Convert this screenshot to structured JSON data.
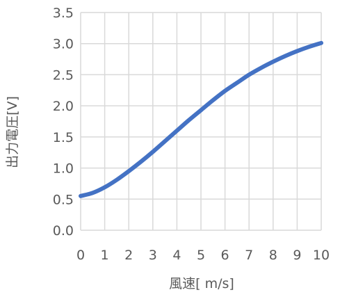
{
  "chart_data": {
    "type": "line",
    "title": "",
    "xlabel": "風速[ m/s]",
    "ylabel": "出力電圧[V]",
    "xlim": [
      0,
      10
    ],
    "ylim": [
      0,
      3.5
    ],
    "grid": true,
    "legend": "none",
    "x_ticks": [
      "0",
      "1",
      "2",
      "3",
      "4",
      "5",
      "6",
      "7",
      "8",
      "9",
      "10"
    ],
    "y_ticks": [
      "0.0",
      "0.5",
      "1.0",
      "1.5",
      "2.0",
      "2.5",
      "3.0",
      "3.5"
    ],
    "series": [
      {
        "color": "#4472c4",
        "x": [
          0,
          0.5,
          1,
          1.5,
          2,
          2.5,
          3,
          3.5,
          4,
          4.5,
          5,
          5.5,
          6,
          6.5,
          7,
          7.5,
          8,
          8.5,
          9,
          9.5,
          10
        ],
        "y": [
          0.55,
          0.6,
          0.69,
          0.81,
          0.95,
          1.1,
          1.26,
          1.43,
          1.6,
          1.77,
          1.93,
          2.09,
          2.24,
          2.37,
          2.5,
          2.61,
          2.71,
          2.8,
          2.88,
          2.95,
          3.01
        ]
      }
    ]
  }
}
